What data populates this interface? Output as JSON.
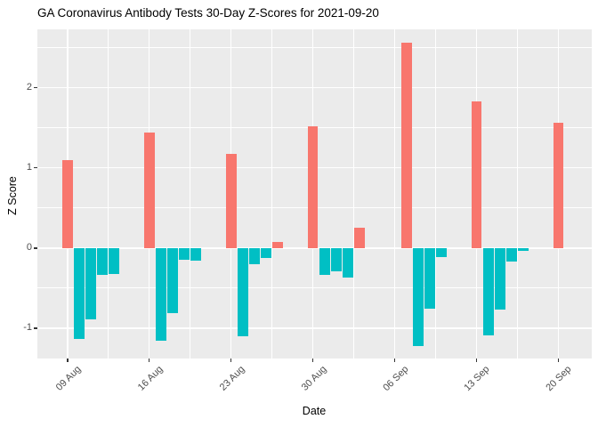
{
  "chart_data": {
    "type": "bar",
    "title": "GA Coronavirus Antibody Tests 30-Day Z-Scores for 2021-09-20",
    "xlabel": "Date",
    "ylabel": "Z Score",
    "ylim": [
      -1.38,
      2.73
    ],
    "y_major_ticks": [
      -1,
      0,
      1,
      2
    ],
    "y_minor_ticks": [
      -0.5,
      0.5,
      1.5,
      2.5
    ],
    "x_origin_date": "2021-08-09",
    "xlim_days": [
      -2.57,
      44.86
    ],
    "x_ticks": [
      {
        "date": "2021-08-09",
        "label": "09 Aug"
      },
      {
        "date": "2021-08-16",
        "label": "16 Aug"
      },
      {
        "date": "2021-08-23",
        "label": "23 Aug"
      },
      {
        "date": "2021-08-30",
        "label": "30 Aug"
      },
      {
        "date": "2021-09-06",
        "label": "06 Sep"
      },
      {
        "date": "2021-09-13",
        "label": "13 Sep"
      },
      {
        "date": "2021-09-20",
        "label": "20 Sep"
      }
    ],
    "grid": true,
    "legend": "none",
    "colors": {
      "positive": "#F8766D",
      "negative": "#00BFC4",
      "panel_bg": "#EBEBEB",
      "grid": "#FFFFFF",
      "axis_text": "#4D4D4D",
      "title_text": "#000000"
    },
    "points": [
      {
        "date": "2021-08-09",
        "value": 1.1
      },
      {
        "date": "2021-08-10",
        "value": -1.14
      },
      {
        "date": "2021-08-11",
        "value": -0.89
      },
      {
        "date": "2021-08-12",
        "value": -0.34
      },
      {
        "date": "2021-08-13",
        "value": -0.33
      },
      {
        "date": "2021-08-16",
        "value": 1.44
      },
      {
        "date": "2021-08-17",
        "value": -1.16
      },
      {
        "date": "2021-08-18",
        "value": -0.81
      },
      {
        "date": "2021-08-19",
        "value": -0.15
      },
      {
        "date": "2021-08-20",
        "value": -0.16
      },
      {
        "date": "2021-08-23",
        "value": 1.17
      },
      {
        "date": "2021-08-24",
        "value": -1.1
      },
      {
        "date": "2021-08-25",
        "value": -0.2
      },
      {
        "date": "2021-08-26",
        "value": -0.12
      },
      {
        "date": "2021-08-27",
        "value": 0.08
      },
      {
        "date": "2021-08-30",
        "value": 1.52
      },
      {
        "date": "2021-08-31",
        "value": -0.34
      },
      {
        "date": "2021-09-01",
        "value": -0.29
      },
      {
        "date": "2021-09-02",
        "value": -0.37
      },
      {
        "date": "2021-09-03",
        "value": 0.25
      },
      {
        "date": "2021-09-07",
        "value": 2.56
      },
      {
        "date": "2021-09-08",
        "value": -1.23
      },
      {
        "date": "2021-09-09",
        "value": -0.76
      },
      {
        "date": "2021-09-10",
        "value": -0.11
      },
      {
        "date": "2021-09-13",
        "value": 1.83
      },
      {
        "date": "2021-09-14",
        "value": -1.09
      },
      {
        "date": "2021-09-15",
        "value": -0.77
      },
      {
        "date": "2021-09-16",
        "value": -0.17
      },
      {
        "date": "2021-09-17",
        "value": -0.04
      },
      {
        "date": "2021-09-20",
        "value": 1.56
      }
    ]
  }
}
